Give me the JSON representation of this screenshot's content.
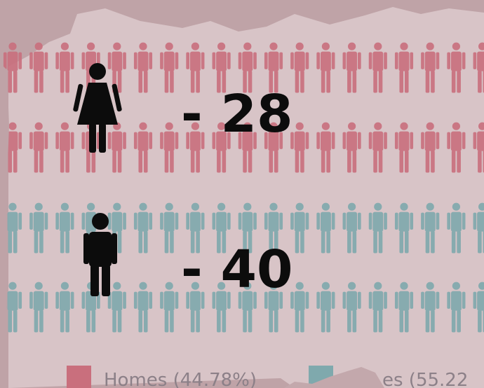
{
  "women": {
    "count_label": "- 28"
  },
  "men": {
    "count_label": "- 40"
  },
  "legend": [
    {
      "label": "Homes (44.78%)"
    },
    {
      "label": "es (55.22"
    }
  ]
}
